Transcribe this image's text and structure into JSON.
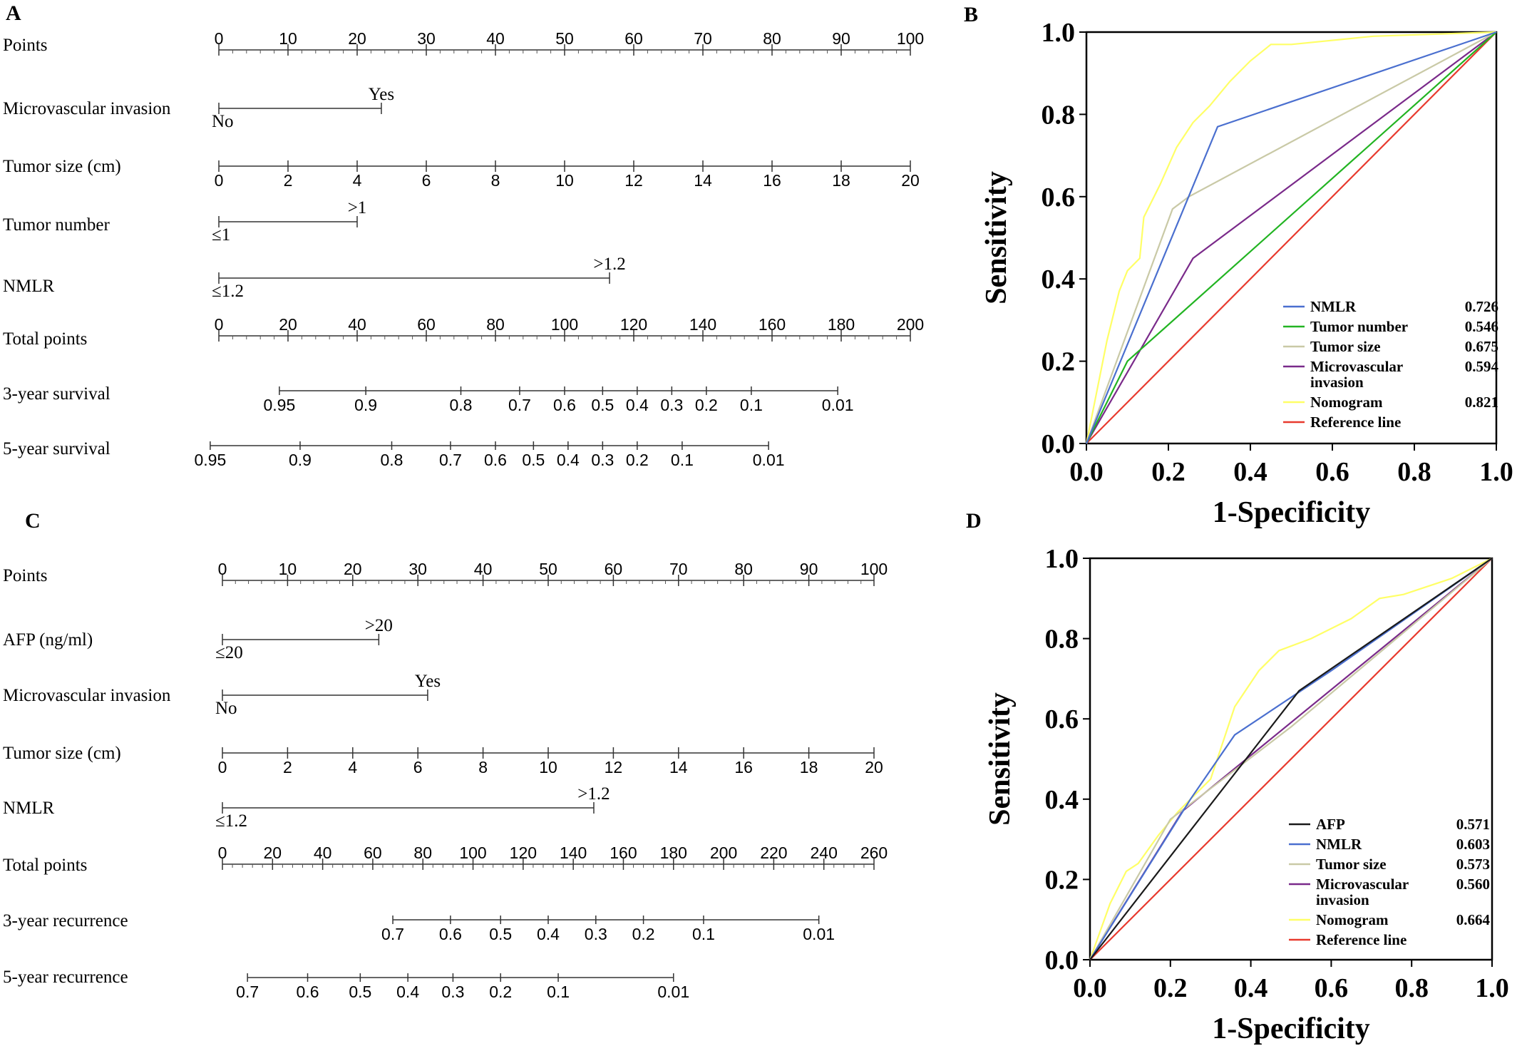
{
  "panels": {
    "A": {
      "letter": "A",
      "rows": [
        {
          "label": "Points",
          "type": "scale",
          "min": 0,
          "max": 100,
          "major": [
            0,
            10,
            20,
            30,
            40,
            50,
            60,
            70,
            80,
            90,
            100
          ],
          "minor_step": 2
        },
        {
          "label": "Microvascular invasion",
          "type": "cat",
          "low": "No",
          "high": "Yes",
          "points": 23.5
        },
        {
          "label": "Tumor size (cm)",
          "type": "scale",
          "min": 0,
          "max": 20,
          "major": [
            0,
            2,
            4,
            6,
            8,
            10,
            12,
            14,
            16,
            18,
            20
          ],
          "ticks_below": true,
          "points_per_unit": 5
        },
        {
          "label": "Tumor  number",
          "type": "cat",
          "low": "≤1",
          "high": ">1",
          "points": 20
        },
        {
          "label": "NMLR",
          "type": "cat",
          "low": "≤1.2",
          "high": ">1.2",
          "points": 56.5
        },
        {
          "label": "Total points",
          "type": "scale",
          "min": 0,
          "max": 200,
          "major": [
            0,
            20,
            40,
            60,
            80,
            100,
            120,
            140,
            160,
            180,
            200
          ],
          "minor_step": 4,
          "ticks_below": false
        },
        {
          "label": "3-year survival",
          "type": "prob",
          "ticks": [
            {
              "label": "0.95",
              "tp": 17.5
            },
            {
              "label": "0.9",
              "tp": 42.5
            },
            {
              "label": "0.8",
              "tp": 70
            },
            {
              "label": "0.7",
              "tp": 87
            },
            {
              "label": "0.6",
              "tp": 100
            },
            {
              "label": "0.5",
              "tp": 111
            },
            {
              "label": "0.4",
              "tp": 121
            },
            {
              "label": "0.3",
              "tp": 131
            },
            {
              "label": "0.2",
              "tp": 141
            },
            {
              "label": "0.1",
              "tp": 154
            },
            {
              "label": "0.01",
              "tp": 179
            }
          ]
        },
        {
          "label": "5-year survival",
          "type": "prob",
          "ticks": [
            {
              "label": "0.95",
              "tp": -2.5
            },
            {
              "label": "0.9",
              "tp": 23.5
            },
            {
              "label": "0.8",
              "tp": 50
            },
            {
              "label": "0.7",
              "tp": 67
            },
            {
              "label": "0.6",
              "tp": 80
            },
            {
              "label": "0.5",
              "tp": 91
            },
            {
              "label": "0.4",
              "tp": 101
            },
            {
              "label": "0.3",
              "tp": 111
            },
            {
              "label": "0.2",
              "tp": 121
            },
            {
              "label": "0.1",
              "tp": 134
            },
            {
              "label": "0.01",
              "tp": 159
            }
          ]
        }
      ]
    },
    "C": {
      "letter": "C",
      "rows": [
        {
          "label": "Points",
          "type": "scale",
          "min": 0,
          "max": 100,
          "major": [
            0,
            10,
            20,
            30,
            40,
            50,
            60,
            70,
            80,
            90,
            100
          ],
          "minor_step": 2
        },
        {
          "label": "AFP (ng/ml)",
          "type": "cat",
          "low": "≤20",
          "high": ">20",
          "points": 24
        },
        {
          "label": "Microvascular invasion",
          "type": "cat",
          "low": "No",
          "high": "Yes",
          "points": 31.5
        },
        {
          "label": "Tumor size (cm)",
          "type": "scale",
          "min": 0,
          "max": 20,
          "major": [
            0,
            2,
            4,
            6,
            8,
            10,
            12,
            14,
            16,
            18,
            20
          ],
          "ticks_below": true
        },
        {
          "label": "NMLR",
          "type": "cat",
          "low": "≤1.2",
          "high": ">1.2",
          "points": 57
        },
        {
          "label": "Total points",
          "type": "scale",
          "min": 0,
          "max": 260,
          "major": [
            0,
            20,
            40,
            60,
            80,
            100,
            120,
            140,
            160,
            180,
            200,
            220,
            240,
            260
          ],
          "minor_step": 4,
          "ticks_below": false
        },
        {
          "label": "3-year recurrence",
          "type": "prob",
          "ticks": [
            {
              "label": "0.7",
              "tp": 68
            },
            {
              "label": "0.6",
              "tp": 91
            },
            {
              "label": "0.5",
              "tp": 111
            },
            {
              "label": "0.4",
              "tp": 130
            },
            {
              "label": "0.3",
              "tp": 149
            },
            {
              "label": "0.2",
              "tp": 168
            },
            {
              "label": "0.1",
              "tp": 192
            },
            {
              "label": "0.01",
              "tp": 238
            }
          ]
        },
        {
          "label": "5-year recurrence",
          "type": "prob",
          "ticks": [
            {
              "label": "0.7",
              "tp": 10
            },
            {
              "label": "0.6",
              "tp": 34
            },
            {
              "label": "0.5",
              "tp": 55
            },
            {
              "label": "0.4",
              "tp": 74
            },
            {
              "label": "0.3",
              "tp": 92
            },
            {
              "label": "0.2",
              "tp": 111
            },
            {
              "label": "0.1",
              "tp": 134
            },
            {
              "label": "0.01",
              "tp": 180
            }
          ]
        }
      ]
    },
    "B": {
      "letter": "B",
      "xlabel": "1-Specificity",
      "ylabel": "Sensitivity"
    },
    "D": {
      "letter": "D",
      "xlabel": "1-Specificity",
      "ylabel": "Sensitivity"
    }
  },
  "chart_data": [
    {
      "type": "line",
      "panel": "B",
      "xlabel": "1-Specificity",
      "ylabel": "Sensitivity",
      "xlim": [
        0,
        1
      ],
      "ylim": [
        0,
        1
      ],
      "xticks": [
        "0.0",
        "0.2",
        "0.4",
        "0.6",
        "0.8",
        "1.0"
      ],
      "yticks": [
        "0.0",
        "0.2",
        "0.4",
        "0.6",
        "0.8",
        "1.0"
      ],
      "legend_position": "bottom-right",
      "series": [
        {
          "name": "NMLR",
          "auc": "0.726",
          "color": "#4a6fcf",
          "points": [
            [
              0,
              0
            ],
            [
              0.32,
              0.77
            ],
            [
              1,
              1
            ]
          ]
        },
        {
          "name": "Tumor number",
          "auc": "0.546",
          "color": "#22b422",
          "points": [
            [
              0,
              0
            ],
            [
              0.1,
              0.2
            ],
            [
              1,
              1
            ]
          ]
        },
        {
          "name": "Tumor size",
          "auc": "0.675",
          "color": "#c9c9a6",
          "points": [
            [
              0,
              0
            ],
            [
              0.21,
              0.57
            ],
            [
              0.25,
              0.6
            ],
            [
              1,
              1
            ]
          ]
        },
        {
          "name": "Microvascular invasion",
          "name_lines": [
            "Microvascular",
            "invasion"
          ],
          "auc": "0.594",
          "color": "#7a2a8a",
          "points": [
            [
              0,
              0
            ],
            [
              0.26,
              0.45
            ],
            [
              1,
              1
            ]
          ]
        },
        {
          "name": "Nomogram",
          "auc": "0.821",
          "color": "#ffff66",
          "points": [
            [
              0,
              0
            ],
            [
              0.02,
              0.1
            ],
            [
              0.05,
              0.25
            ],
            [
              0.08,
              0.37
            ],
            [
              0.1,
              0.42
            ],
            [
              0.13,
              0.45
            ],
            [
              0.14,
              0.55
            ],
            [
              0.18,
              0.63
            ],
            [
              0.22,
              0.72
            ],
            [
              0.26,
              0.78
            ],
            [
              0.3,
              0.82
            ],
            [
              0.35,
              0.88
            ],
            [
              0.4,
              0.93
            ],
            [
              0.45,
              0.97
            ],
            [
              0.5,
              0.97
            ],
            [
              0.7,
              0.99
            ],
            [
              1,
              1
            ]
          ]
        },
        {
          "name": "Reference line",
          "auc": "",
          "color": "#e83a2e",
          "points": [
            [
              0,
              0
            ],
            [
              1,
              1
            ]
          ]
        }
      ]
    },
    {
      "type": "line",
      "panel": "D",
      "xlabel": "1-Specificity",
      "ylabel": "Sensitivity",
      "xlim": [
        0,
        1
      ],
      "ylim": [
        0,
        1
      ],
      "xticks": [
        "0.0",
        "0.2",
        "0.4",
        "0.6",
        "0.8",
        "1.0"
      ],
      "yticks": [
        "0.0",
        "0.2",
        "0.4",
        "0.6",
        "0.8",
        "1.0"
      ],
      "legend_position": "bottom-right",
      "series": [
        {
          "name": "AFP",
          "auc": "0.571",
          "color": "#1a1a1a",
          "points": [
            [
              0,
              0
            ],
            [
              0.52,
              0.67
            ],
            [
              1,
              1
            ]
          ]
        },
        {
          "name": "NMLR",
          "auc": "0.603",
          "color": "#4a6fcf",
          "points": [
            [
              0,
              0
            ],
            [
              0.25,
              0.4
            ],
            [
              0.36,
              0.56
            ],
            [
              0.6,
              0.72
            ],
            [
              1,
              1
            ]
          ]
        },
        {
          "name": "Tumor size",
          "auc": "0.573",
          "color": "#c9c9a6",
          "points": [
            [
              0,
              0
            ],
            [
              0.2,
              0.35
            ],
            [
              0.5,
              0.58
            ],
            [
              1,
              1
            ]
          ]
        },
        {
          "name": "Microvascular invasion",
          "name_lines": [
            "Microvascular",
            "invasion"
          ],
          "auc": "0.560",
          "color": "#7a2a8a",
          "points": [
            [
              0,
              0
            ],
            [
              0.23,
              0.37
            ],
            [
              1,
              1
            ]
          ]
        },
        {
          "name": "Nomogram",
          "auc": "0.664",
          "color": "#ffff66",
          "points": [
            [
              0,
              0
            ],
            [
              0.05,
              0.14
            ],
            [
              0.09,
              0.22
            ],
            [
              0.12,
              0.24
            ],
            [
              0.17,
              0.31
            ],
            [
              0.22,
              0.37
            ],
            [
              0.3,
              0.45
            ],
            [
              0.36,
              0.63
            ],
            [
              0.42,
              0.72
            ],
            [
              0.47,
              0.77
            ],
            [
              0.55,
              0.8
            ],
            [
              0.65,
              0.85
            ],
            [
              0.72,
              0.9
            ],
            [
              0.78,
              0.91
            ],
            [
              0.9,
              0.95
            ],
            [
              1,
              1
            ]
          ]
        },
        {
          "name": "Reference line",
          "auc": "",
          "color": "#e83a2e",
          "points": [
            [
              0,
              0
            ],
            [
              1,
              1
            ]
          ]
        }
      ]
    }
  ]
}
